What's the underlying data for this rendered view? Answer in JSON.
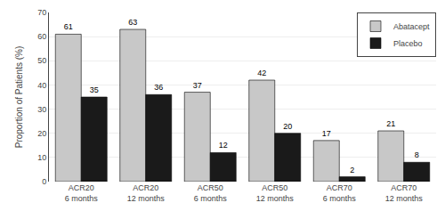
{
  "chart_data": {
    "type": "bar",
    "categories": [
      "ACR20\n6 months",
      "ACR20\n12 months",
      "ACR50\n6 months",
      "ACR50\n12 months",
      "ACR70\n6 months",
      "ACR70\n12 months"
    ],
    "series": [
      {
        "name": "Abatacept",
        "color": "#c8c8c8",
        "values": [
          61,
          63,
          37,
          42,
          17,
          21
        ]
      },
      {
        "name": "Placebo",
        "color": "#1a1a1a",
        "values": [
          35,
          36,
          12,
          20,
          2,
          8
        ]
      }
    ],
    "ylabel": "Proportion of Patients (%)",
    "ylim": [
      0,
      70
    ],
    "yticks": [
      0,
      10,
      20,
      30,
      40,
      50,
      60,
      70
    ],
    "grid": true,
    "legend": "upper right",
    "data_labels": true
  }
}
